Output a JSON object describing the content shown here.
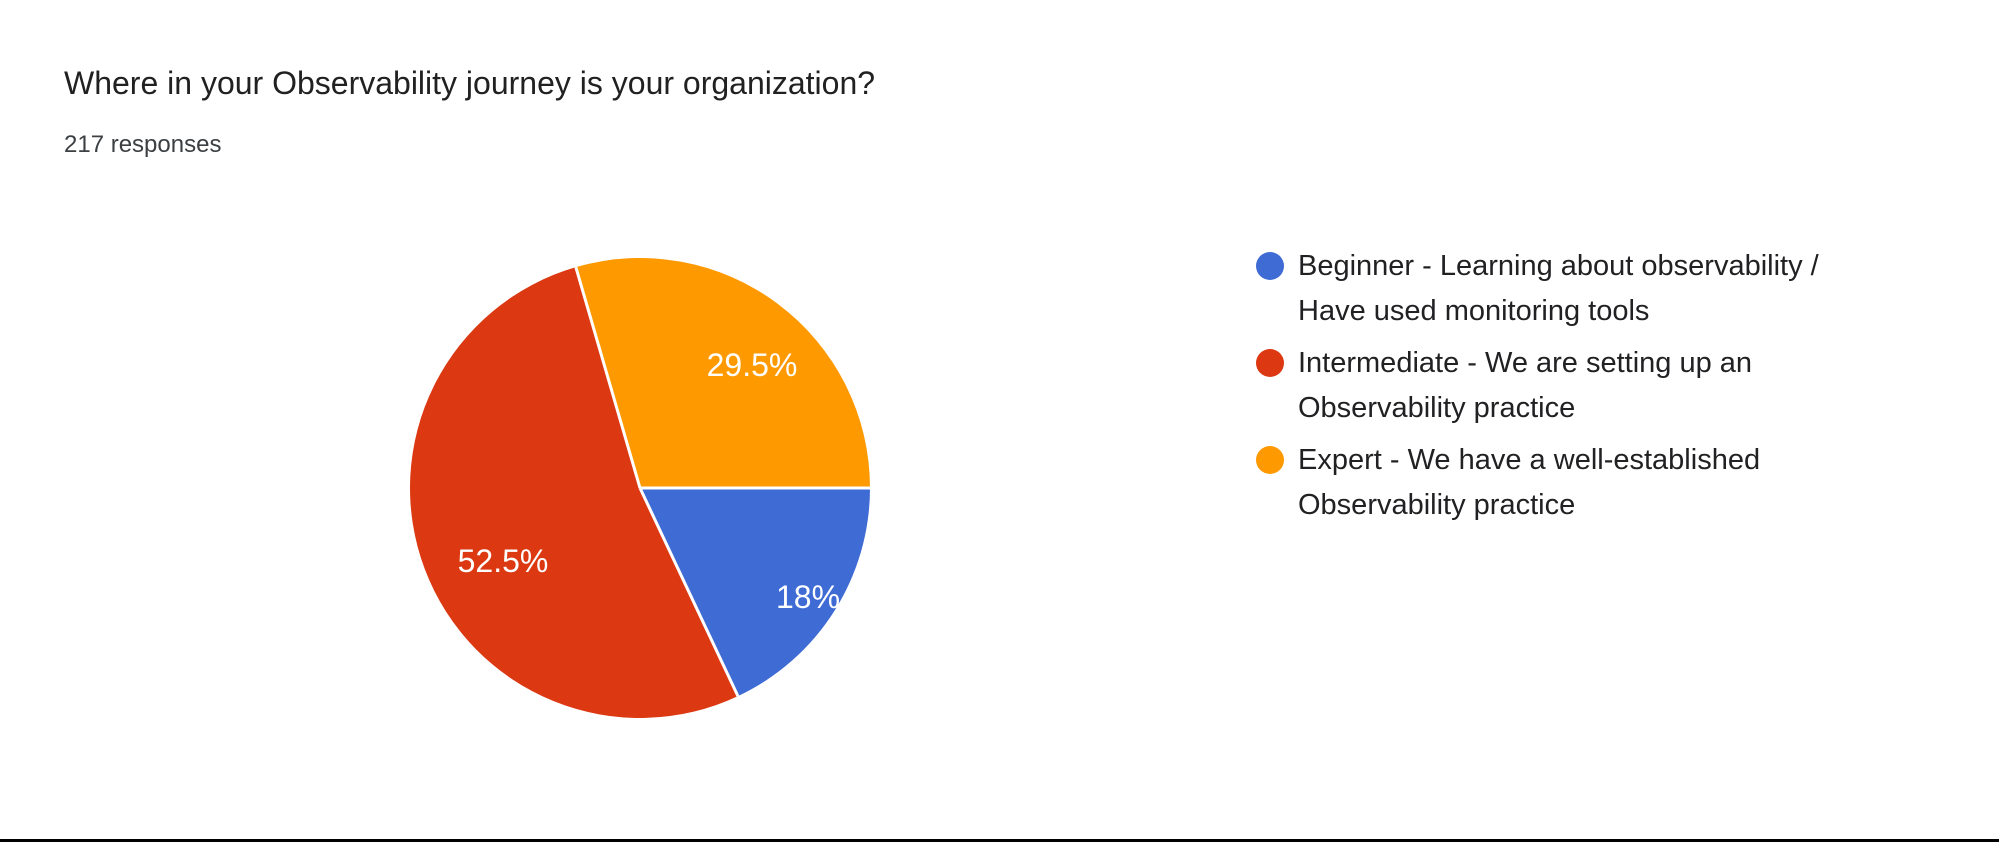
{
  "page": {
    "title": "Where in your Observability journey is your organization?",
    "responses_label": "217 responses"
  },
  "chart_data": {
    "type": "pie",
    "title": "Where in your Observability journey is your organization?",
    "subtitle": "217 responses",
    "total_responses": 217,
    "legend_position": "right",
    "start_angle_deg": 0,
    "direction": "clockwise",
    "slices": [
      {
        "label": "Beginner - Learning about observability / Have used monitoring tools",
        "value": 18,
        "display": "18%",
        "color": "#3E6BD4"
      },
      {
        "label": "Intermediate - We are setting up an Observability practice",
        "value": 52.5,
        "display": "52.5%",
        "color": "#DC3912"
      },
      {
        "label": "Expert - We have a well-established Observability practice",
        "value": 29.5,
        "display": "29.5%",
        "color": "#FF9900"
      }
    ]
  },
  "legend": {
    "items": [
      {
        "color": "#3E6BD4",
        "line1": "Beginner - Learning about observability /",
        "line2": "Have used monitoring tools"
      },
      {
        "color": "#DC3912",
        "line1": "Intermediate - We are setting up an",
        "line2": "Observability practice"
      },
      {
        "color": "#FF9900",
        "line1": "Expert - We have a well-established",
        "line2": "Observability practice"
      }
    ]
  }
}
